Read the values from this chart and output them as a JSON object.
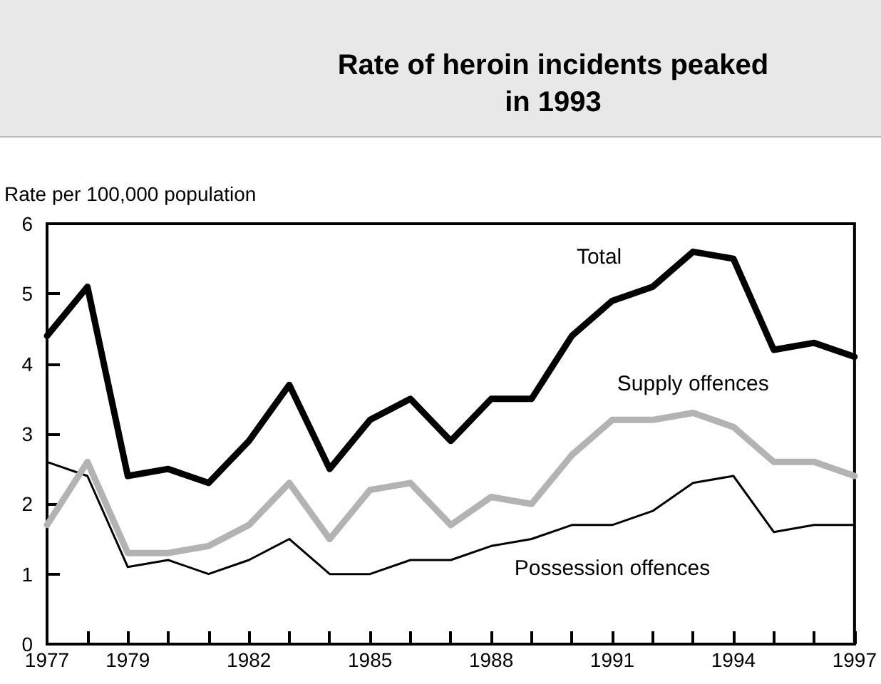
{
  "chart_data": {
    "type": "line",
    "title": "Rate of heroin incidents peaked\nin 1993",
    "ylabel": "Rate per 100,000 population",
    "x": [
      1977,
      1978,
      1979,
      1980,
      1981,
      1982,
      1983,
      1984,
      1985,
      1986,
      1987,
      1988,
      1989,
      1990,
      1991,
      1992,
      1993,
      1994,
      1995,
      1996,
      1997
    ],
    "series": [
      {
        "name": "Total",
        "color": "#000000",
        "values": [
          4.4,
          5.1,
          2.4,
          2.5,
          2.3,
          2.9,
          3.7,
          2.5,
          3.2,
          3.5,
          2.9,
          3.5,
          3.5,
          4.4,
          4.9,
          5.1,
          5.6,
          5.5,
          4.2,
          4.3,
          4.1
        ]
      },
      {
        "name": "Supply offences",
        "color": "#b3b3b3",
        "values": [
          1.7,
          2.6,
          1.3,
          1.3,
          1.4,
          1.7,
          2.3,
          1.5,
          2.2,
          2.3,
          1.7,
          2.1,
          2.0,
          2.7,
          3.2,
          3.2,
          3.3,
          3.1,
          2.6,
          2.6,
          2.4
        ]
      },
      {
        "name": "Possession offences",
        "color": "#000000",
        "values": [
          2.6,
          2.4,
          1.1,
          1.2,
          1.0,
          1.2,
          1.5,
          1.0,
          1.0,
          1.2,
          1.2,
          1.4,
          1.5,
          1.7,
          1.7,
          1.9,
          2.3,
          2.4,
          1.6,
          1.7,
          1.7
        ]
      }
    ],
    "xlim": [
      1977,
      1997
    ],
    "xticks": [
      1977,
      {
        "value": 1978,
        "label": null
      },
      1979,
      {
        "value": 1980,
        "label": null
      },
      {
        "value": 1981,
        "label": null
      },
      1982,
      {
        "value": 1983,
        "label": null
      },
      {
        "value": 1984,
        "label": null
      },
      1985,
      {
        "value": 1986,
        "label": null
      },
      {
        "value": 1987,
        "label": null
      },
      1988,
      {
        "value": 1989,
        "label": null
      },
      {
        "value": 1990,
        "label": null
      },
      1991,
      {
        "value": 1992,
        "label": null
      },
      {
        "value": 1993,
        "label": null
      },
      1994,
      {
        "value": 1995,
        "label": null
      },
      {
        "value": 1996,
        "label": null
      },
      1997
    ],
    "ylim": [
      0,
      6
    ],
    "yticks": [
      0,
      1,
      2,
      3,
      4,
      5,
      6
    ],
    "grid": false,
    "legend": false,
    "marker": "none",
    "line_style": "solid"
  }
}
